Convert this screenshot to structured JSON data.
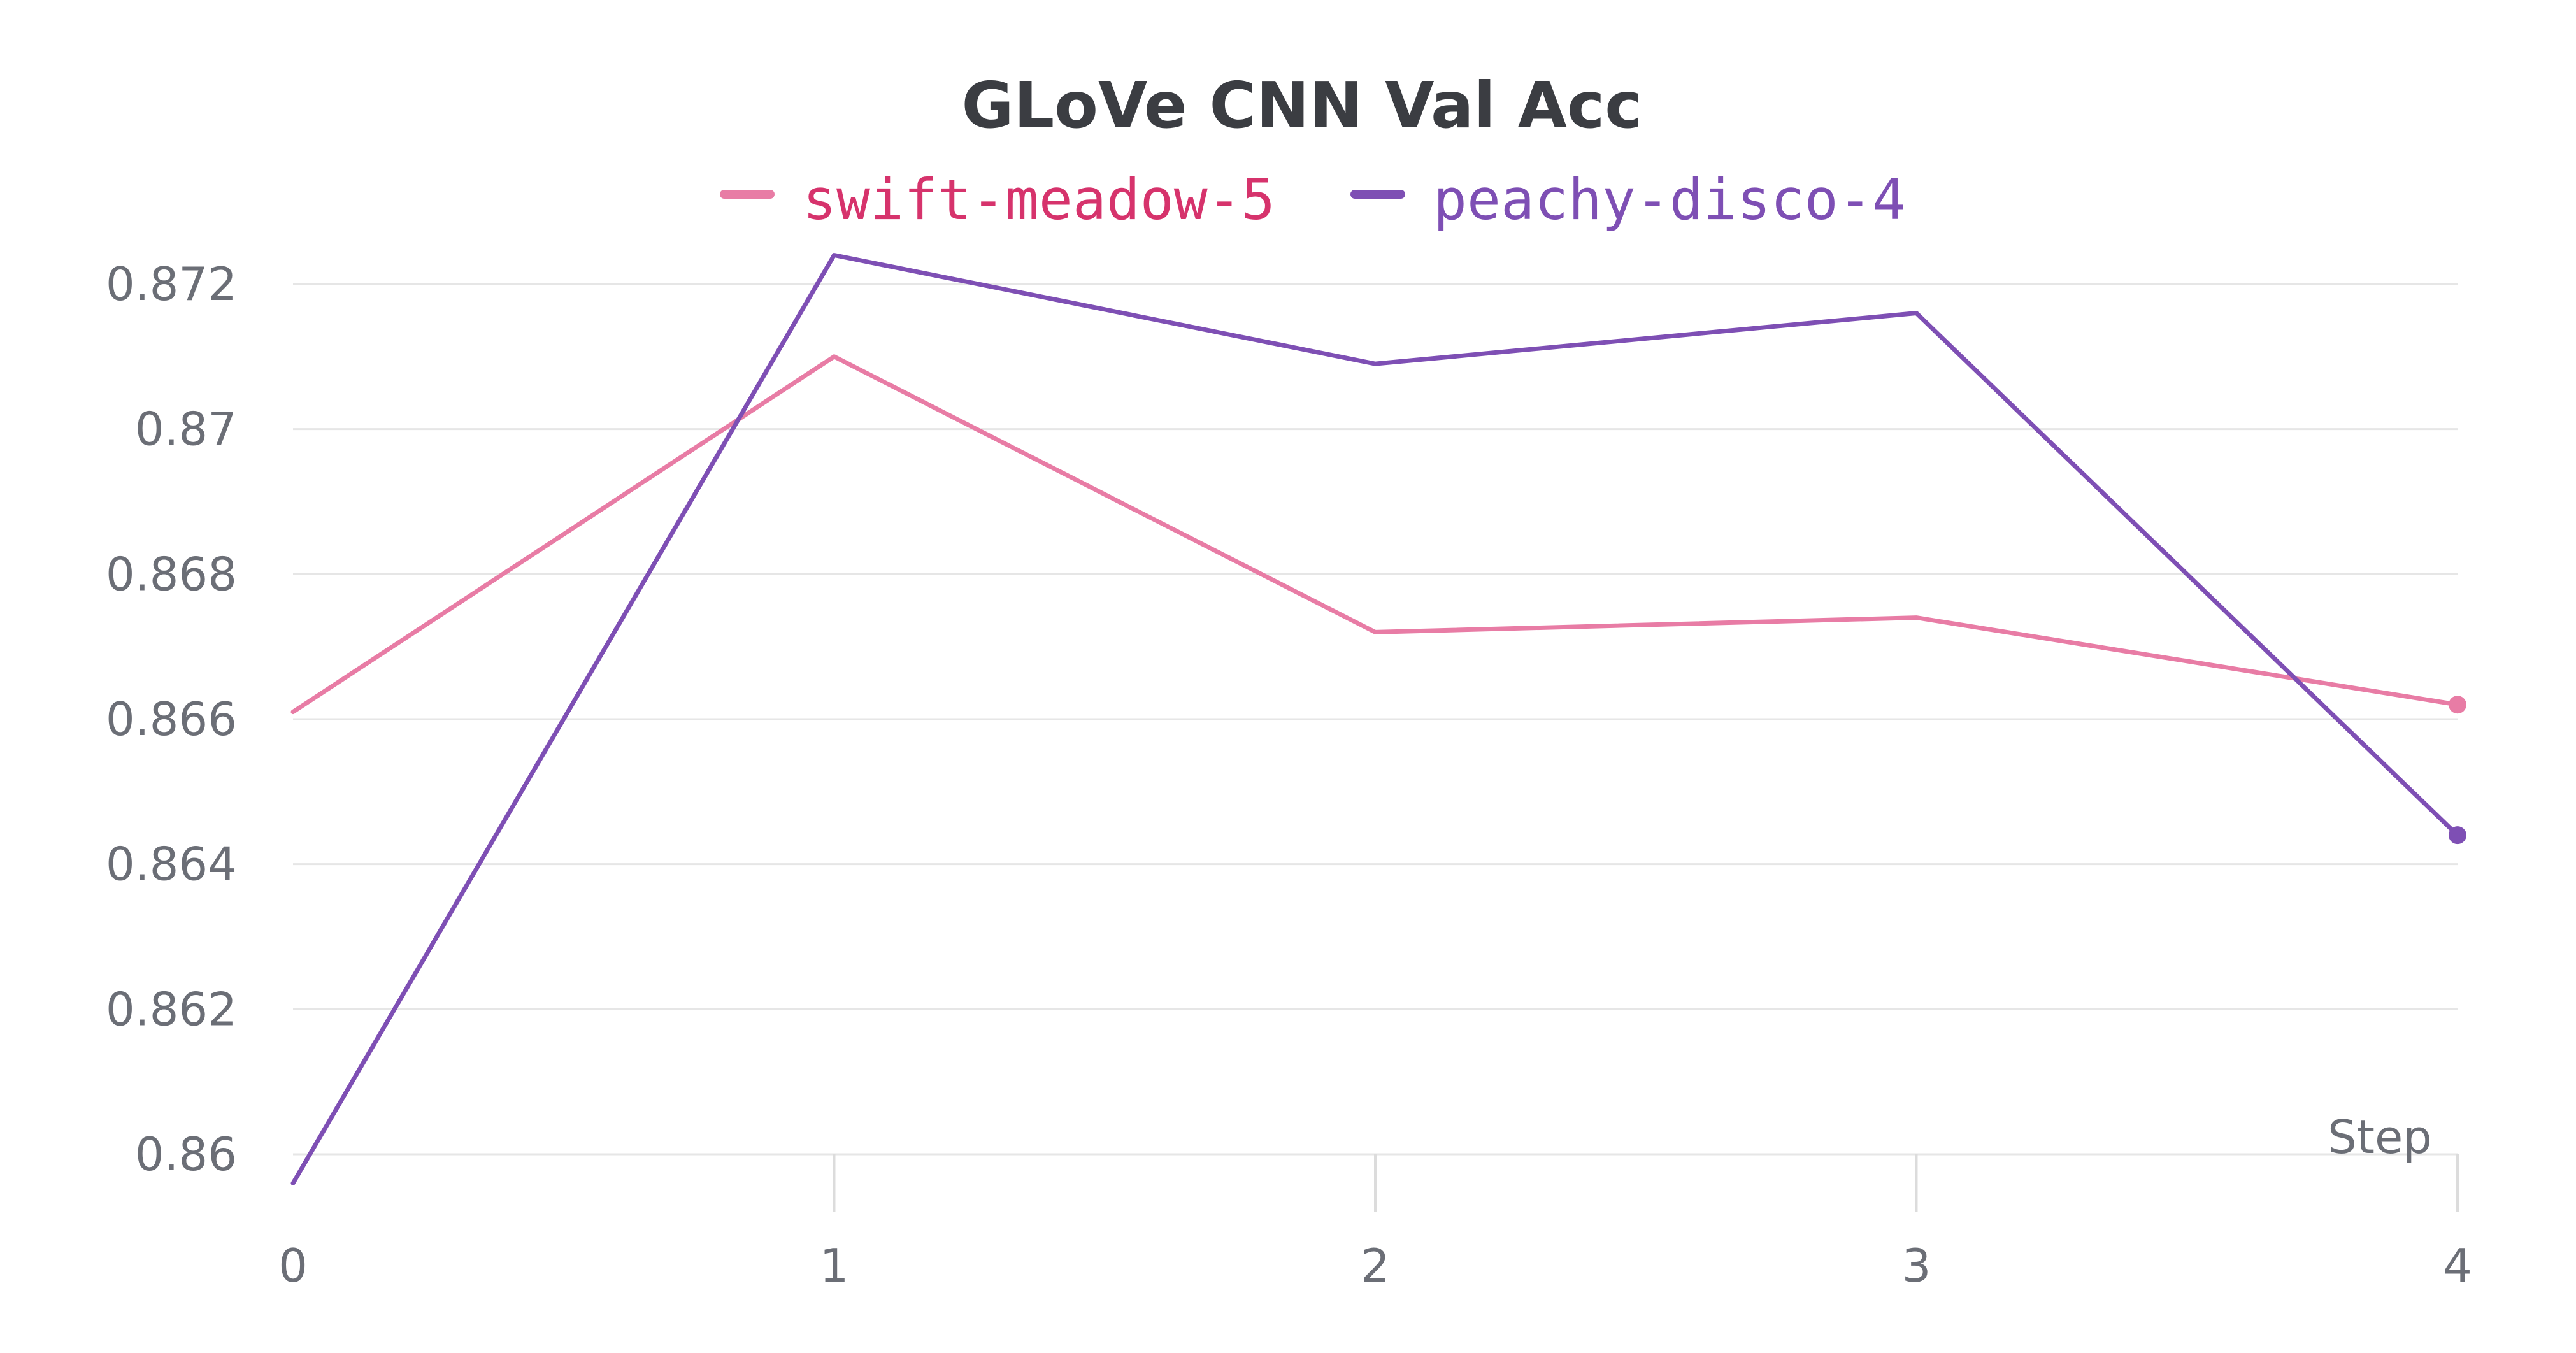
{
  "chart_data": {
    "type": "line",
    "title": "GLoVe CNN Val Acc",
    "xlabel": "Step",
    "ylabel": "",
    "x": [
      0,
      1,
      2,
      3,
      4
    ],
    "x_ticks": [
      "0",
      "1",
      "2",
      "3",
      "4"
    ],
    "y_ticks": [
      0.86,
      0.862,
      0.864,
      0.866,
      0.868,
      0.87,
      0.872
    ],
    "y_tick_labels": [
      "0.86",
      "0.862",
      "0.864",
      "0.866",
      "0.868",
      "0.87",
      "0.872"
    ],
    "xlim": [
      0,
      4
    ],
    "ylim": [
      0.8596,
      0.8724
    ],
    "grid": true,
    "legend_position": "top-center",
    "series": [
      {
        "name": "swift-meadow-5",
        "color": "#e87ca5",
        "text_color": "#d6336c",
        "values": [
          0.8661,
          0.871,
          0.8672,
          0.8674,
          0.8662
        ]
      },
      {
        "name": "peachy-disco-4",
        "color": "#7e4fb4",
        "text_color": "#7e4fb4",
        "values": [
          0.8596,
          0.8724,
          0.8709,
          0.8716,
          0.8644
        ]
      }
    ]
  }
}
